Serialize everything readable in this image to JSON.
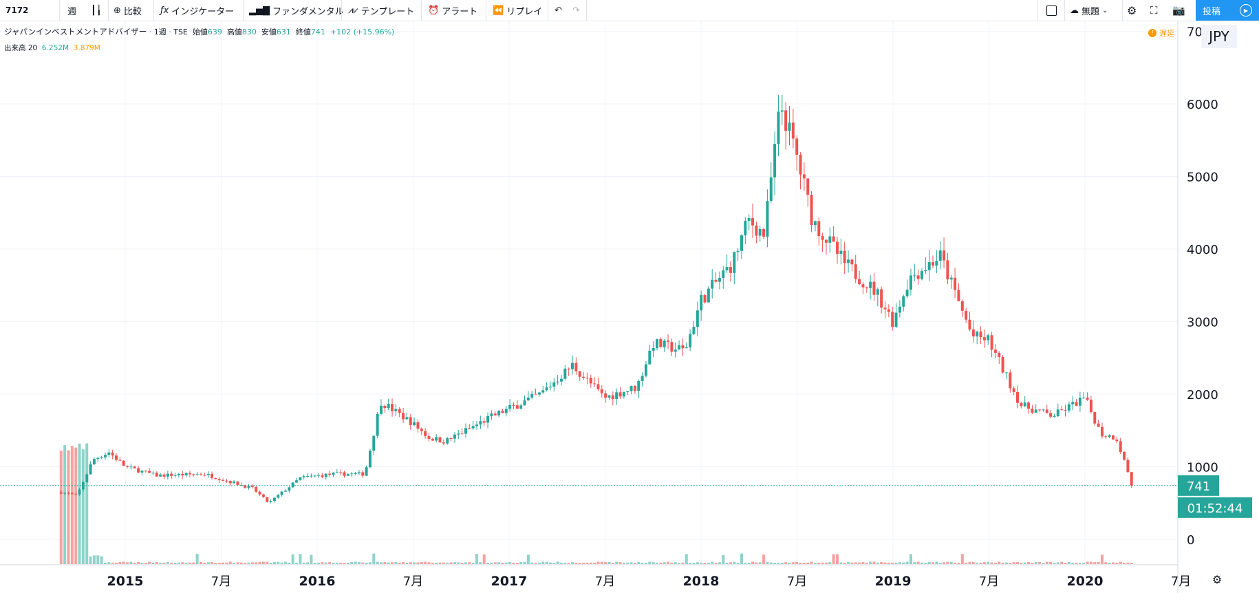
{
  "toolbar": {
    "symbol": "7172",
    "interval": "週",
    "compare": "比較",
    "indicators": "インジケーター",
    "fundamentals": "ファンダメンタル",
    "templates": "テンプレート",
    "alert": "アラート",
    "replay": "リプレイ",
    "layout_name": "無題",
    "post": "投稿"
  },
  "legend": {
    "name": "ジャパンインベストメントアドバイザー",
    "interval": "1週",
    "exchange": "TSE",
    "open_label": "始値",
    "open": "639",
    "high_label": "高値",
    "high": "830",
    "low_label": "安値",
    "low": "631",
    "close_label": "終値",
    "close": "741",
    "change": "+102 (+15.96%)",
    "volume_label": "出来高 20",
    "volume_value": "6.252M",
    "volume_ma": "3.879M",
    "delay_label": "遅延"
  },
  "price_axis": {
    "currency": "JPY",
    "labels": [
      "7000",
      "6000",
      "5000",
      "4000",
      "3000",
      "2000",
      "1000",
      "0"
    ],
    "last_price_label": "741",
    "countdown_label": "01:52:44"
  },
  "colors": {
    "up": "#26a69a",
    "down": "#ef5350",
    "up_volume": "#8fd3ca",
    "down_volume": "#f5a3a1",
    "price_line": "#26a69a"
  },
  "chart_data": {
    "type": "candlestick",
    "interval": "1週",
    "ylim": [
      -300,
      7000
    ],
    "x_tick_labels": [
      "2015",
      "7月",
      "2016",
      "7月",
      "2017",
      "7月",
      "2018",
      "7月",
      "2019",
      "7月",
      "2020",
      "7月"
    ],
    "last_price": 741,
    "last_bar": {
      "open": 639,
      "high": 830,
      "low": 631,
      "close": 741
    },
    "series": [
      {
        "name": "価格",
        "path_dates": [
          "2014-09",
          "2014-10",
          "2014-11",
          "2014-12",
          "2015-01",
          "2015-03",
          "2015-06",
          "2015-09",
          "2015-10",
          "2015-12",
          "2016-02",
          "2016-04",
          "2016-05",
          "2016-07",
          "2016-08",
          "2016-09",
          "2016-12",
          "2017-03",
          "2017-05",
          "2017-07",
          "2017-09",
          "2017-10",
          "2017-12",
          "2018-01",
          "2018-03",
          "2018-04",
          "2018-05",
          "2018-06",
          "2018-07",
          "2018-08",
          "2018-10",
          "2018-12",
          "2019-01",
          "2019-02",
          "2019-04",
          "2019-06",
          "2019-07",
          "2019-09",
          "2019-11",
          "2020-01",
          "2020-02",
          "2020-03",
          "2020-04"
        ],
        "values": [
          650,
          600,
          1100,
          1200,
          1000,
          880,
          900,
          700,
          500,
          850,
          900,
          900,
          1900,
          1600,
          1400,
          1350,
          1700,
          2000,
          2400,
          1950,
          2100,
          2700,
          2600,
          3300,
          3800,
          4400,
          4200,
          6000,
          5300,
          4400,
          3800,
          3400,
          3000,
          3600,
          3900,
          2800,
          2750,
          1850,
          1700,
          1950,
          1450,
          1400,
          741
        ]
      },
      {
        "name": "出来高"
      }
    ]
  }
}
